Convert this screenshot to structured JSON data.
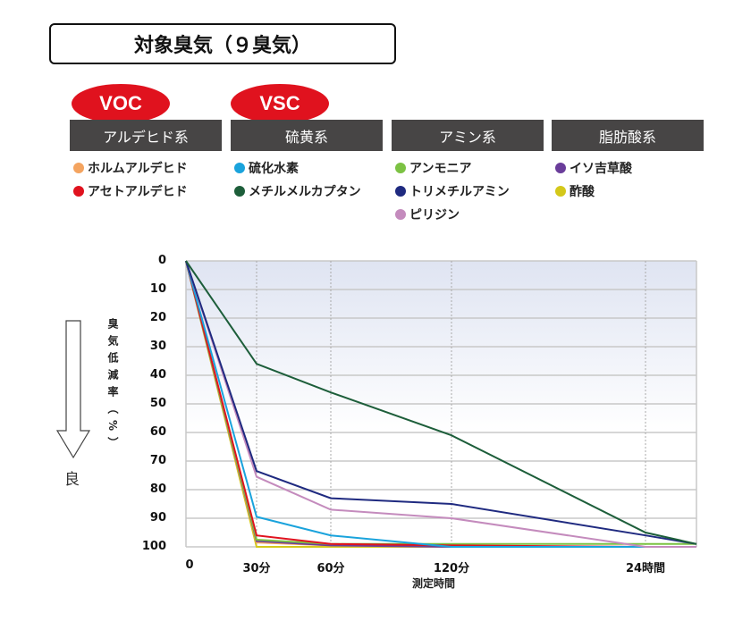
{
  "header": {
    "title": "対象臭気（９臭気）"
  },
  "badges": [
    "VOC",
    "VSC"
  ],
  "groups": [
    {
      "label": "アルデヒド系",
      "items": [
        {
          "name": "ホルムアルデヒド",
          "color": "#f4a460"
        },
        {
          "name": "アセトアルデヒド",
          "color": "#e0121e"
        }
      ]
    },
    {
      "label": "硫黄系",
      "items": [
        {
          "name": "硫化水素",
          "color": "#1aa3dc"
        },
        {
          "name": "メチルメルカプタン",
          "color": "#1d5e3a"
        }
      ]
    },
    {
      "label": "アミン系",
      "items": [
        {
          "name": "アンモニア",
          "color": "#7cc243"
        },
        {
          "name": "トリメチルアミン",
          "color": "#1f2a80"
        },
        {
          "name": "ピリジン",
          "color": "#c48bbd"
        }
      ]
    },
    {
      "label": "脂肪酸系",
      "items": [
        {
          "name": "イソ吉草酸",
          "color": "#6a3d9a"
        },
        {
          "name": "酢酸",
          "color": "#d4c81a"
        }
      ]
    }
  ],
  "side": {
    "good_label": "良"
  },
  "chart_data": {
    "type": "line",
    "xlabel": "測定時間",
    "ylabel": "臭気低減率（%）",
    "categories": [
      "0",
      "30分",
      "60分",
      "120分",
      "24時間",
      ""
    ],
    "yticks": [
      0,
      10,
      20,
      30,
      40,
      50,
      60,
      70,
      80,
      90,
      100
    ],
    "ylim": [
      0,
      100
    ],
    "y_inverted": true,
    "grid": true,
    "series": [
      {
        "name": "メチルメルカプタン",
        "color": "#1d5e3a",
        "values": [
          0,
          36,
          46,
          61,
          95,
          99
        ]
      },
      {
        "name": "トリメチルアミン",
        "color": "#1f2a80",
        "values": [
          0,
          73.5,
          83,
          85,
          96,
          99
        ]
      },
      {
        "name": "ピリジン",
        "color": "#c48bbd",
        "values": [
          0,
          75.5,
          87,
          90,
          100,
          100
        ]
      },
      {
        "name": "硫化水素",
        "color": "#1aa3dc",
        "values": [
          0,
          89.5,
          96,
          100,
          100,
          100
        ]
      },
      {
        "name": "アセトアルデヒド",
        "color": "#e0121e",
        "values": [
          0,
          96,
          99,
          99.5,
          100,
          100
        ]
      },
      {
        "name": "アンモニア",
        "color": "#7cc243",
        "values": [
          0,
          97.5,
          99,
          99,
          99,
          99
        ]
      },
      {
        "name": "イソ吉草酸",
        "color": "#6a3d9a",
        "values": [
          0,
          98,
          99.5,
          100,
          100,
          100
        ]
      },
      {
        "name": "ホルムアルデヒド",
        "color": "#f4a460",
        "values": [
          0,
          98.5,
          99.5,
          100,
          100,
          100
        ]
      },
      {
        "name": "酢酸",
        "color": "#d4c81a",
        "values": [
          0,
          100,
          100,
          100,
          100,
          100
        ]
      }
    ]
  }
}
